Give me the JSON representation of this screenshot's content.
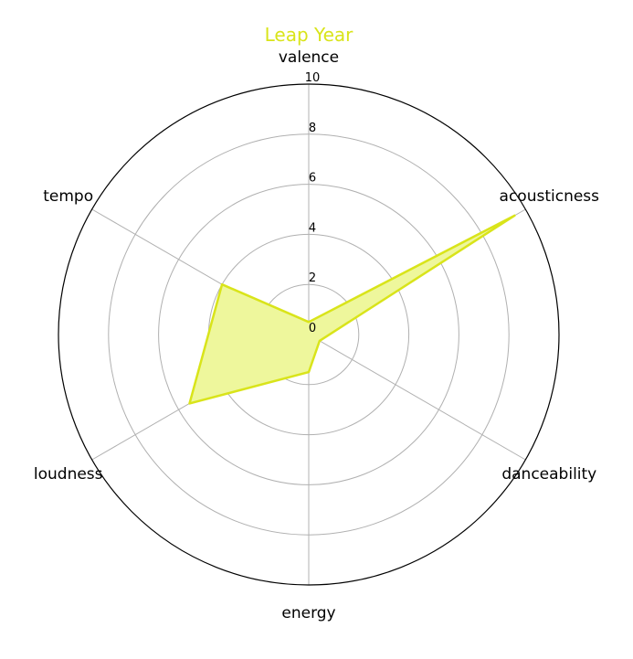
{
  "chart_data": {
    "type": "radar",
    "title": "Leap Year",
    "categories": [
      "valence",
      "acousticness",
      "danceability",
      "energy",
      "loudness",
      "tempo"
    ],
    "series": [
      {
        "values": [
          0.5,
          9.5,
          0.5,
          1.5,
          5.5,
          4.0
        ]
      }
    ],
    "radial_ticks": [
      "0",
      "2",
      "4",
      "6",
      "8",
      "10"
    ],
    "rlim": [
      0,
      10
    ],
    "grid": true,
    "color": "#d9e41a",
    "fill_color": "#eef79c"
  }
}
